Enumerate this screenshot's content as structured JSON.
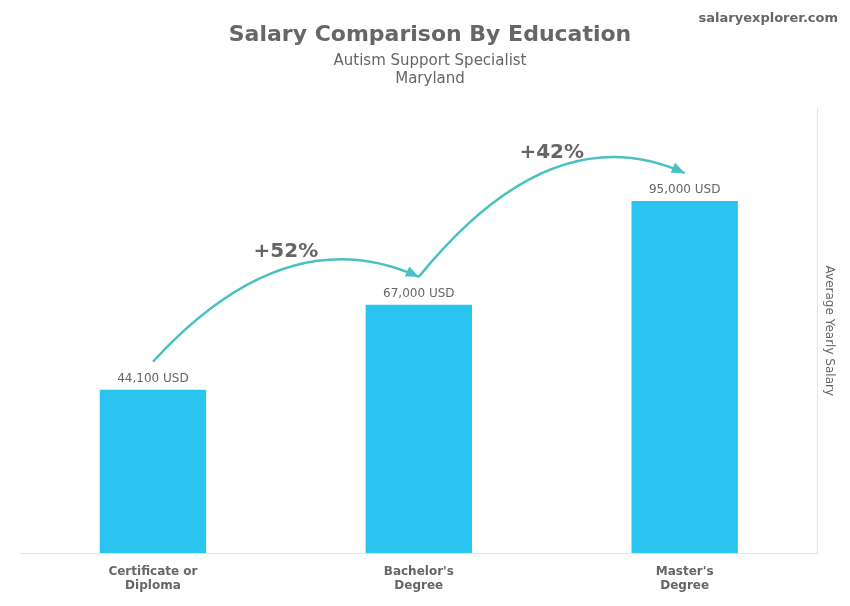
{
  "chart_data": {
    "type": "bar",
    "title": "Salary Comparison By Education",
    "subtitle": [
      "Autism Support Specialist",
      "Maryland"
    ],
    "ylabel": "Average Yearly Salary",
    "categories": [
      "Certificate or\nDiploma",
      "Bachelor's\nDegree",
      "Master's\nDegree"
    ],
    "values": [
      44100,
      67000,
      95000
    ],
    "value_labels": [
      "44,100 USD",
      "67,000 USD",
      "95,000 USD"
    ],
    "data_labels": true,
    "color": "#29C4F0",
    "ylim": [
      0,
      120000
    ],
    "grid": false,
    "tick_labels": "x",
    "annotations": [
      {
        "text": "+52%",
        "from": 0,
        "to": 1
      },
      {
        "text": "+42%",
        "from": 1,
        "to": 2
      },
      {
        "text": "salaryexplorer.com"
      }
    ]
  }
}
